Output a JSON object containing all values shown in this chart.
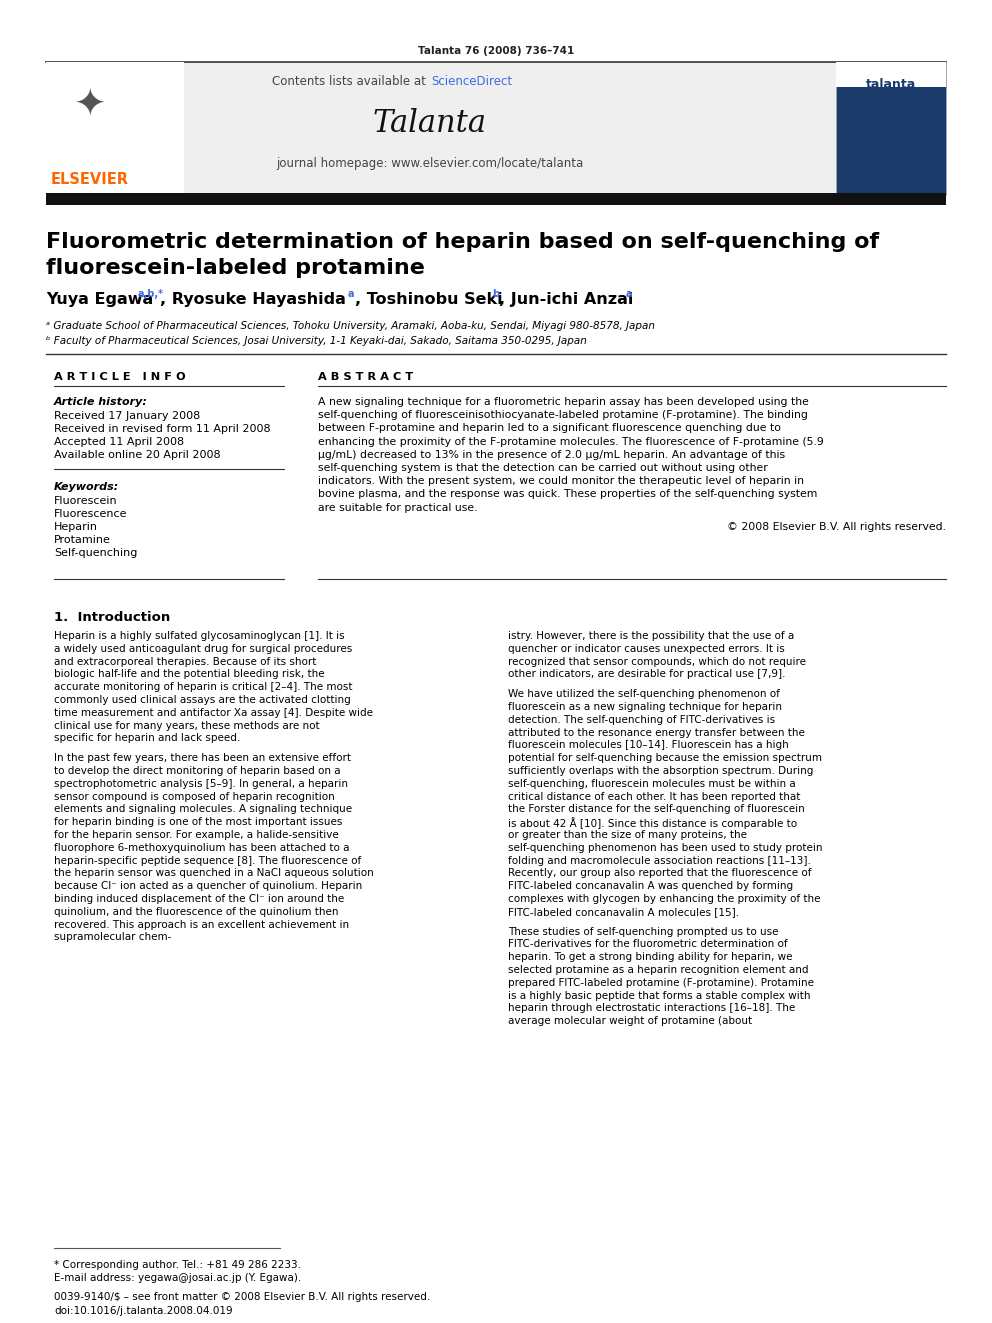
{
  "journal_ref": "Talanta 76 (2008) 736–741",
  "sciencedirect_color": "#4169e1",
  "journal_name": "Talanta",
  "journal_homepage": "journal homepage: www.elsevier.com/locate/talanta",
  "affil_a": "ᵃ Graduate School of Pharmaceutical Sciences, Tohoku University, Aramaki, Aoba-ku, Sendai, Miyagi 980-8578, Japan",
  "affil_b": "ᵇ Faculty of Pharmaceutical Sciences, Josai University, 1-1 Keyaki-dai, Sakado, Saitama 350-0295, Japan",
  "article_info_header": "A R T I C L E   I N F O",
  "abstract_header": "A B S T R A C T",
  "keywords": [
    "Fluorescein",
    "Fluorescence",
    "Heparin",
    "Protamine",
    "Self-quenching"
  ],
  "abstract_text": "A new signaling technique for a fluorometric heparin assay has been developed using the self-quenching of fluoresceinisothiocyanate-labeled protamine (F-protamine). The binding between F-protamine and heparin led to a significant fluorescence quenching due to enhancing the proximity of the F-protamine molecules. The fluorescence of F-protamine (5.9 μg/mL) decreased to 13% in the presence of 2.0 μg/mL heparin. An advantage of this self-quenching system is that the detection can be carried out without using other indicators. With the present system, we could monitor the therapeutic level of heparin in bovine plasma, and the response was quick. These properties of the self-quenching system are suitable for practical use.",
  "copyright": "© 2008 Elsevier B.V. All rights reserved.",
  "intro_col1_para1": "Heparin is a highly sulfated glycosaminoglycan [1]. It is a widely used anticoagulant drug for surgical procedures and extracorporeal therapies. Because of its short biologic half-life and the potential bleeding risk, the accurate monitoring of heparin is critical [2–4]. The most commonly used clinical assays are the activated clotting time measurement and antifactor Xa assay [4]. Despite wide clinical use for many years, these methods are not specific for heparin and lack speed.",
  "intro_col1_para2": "In the past few years, there has been an extensive effort to develop the direct monitoring of heparin based on a spectrophotometric analysis [5–9]. In general, a heparin sensor compound is composed of heparin recognition elements and signaling molecules. A signaling technique for heparin binding is one of the most important issues for the heparin sensor. For example, a halide-sensitive fluorophore 6-methoxyquinolium has been attached to a heparin-specific peptide sequence [8]. The fluorescence of the heparin sensor was quenched in a NaCl aqueous solution because Cl⁻ ion acted as a quencher of quinolium. Heparin binding induced displacement of the Cl⁻ ion around the quinolium, and the fluorescence of the quinolium then recovered. This approach is an excellent achievement in supramolecular chem-",
  "intro_col2_para1": "istry. However, there is the possibility that the use of a quencher or indicator causes unexpected errors. It is recognized that sensor compounds, which do not require other indicators, are desirable for practical use [7,9].",
  "intro_col2_para2": "We have utilized the self-quenching phenomenon of fluorescein as a new signaling technique for heparin detection. The self-quenching of FITC-derivatives is attributed to the resonance energy transfer between the fluorescein molecules [10–14]. Fluorescein has a high potential for self-quenching because the emission spectrum sufficiently overlaps with the absorption spectrum. During self-quenching, fluorescein molecules must be within a critical distance of each other. It has been reported that the Forster distance for the self-quenching of fluorescein is about 42 Å [10]. Since this distance is comparable to or greater than the size of many proteins, the self-quenching phenomenon has been used to study protein folding and macromolecule association reactions [11–13]. Recently, our group also reported that the fluorescence of FITC-labeled concanavalin A was quenched by forming complexes with glycogen by enhancing the proximity of the FITC-labeled concanavalin A molecules [15].",
  "intro_col2_para3": "These studies of self-quenching prompted us to use FITC-derivatives for the fluorometric determination of heparin. To get a strong binding ability for heparin, we selected protamine as a heparin recognition element and prepared FITC-labeled protamine (F-protamine). Protamine is a highly basic peptide that forms a stable complex with heparin through electrostatic interactions [16–18]. The average molecular weight of protamine (about",
  "footnote_star": "* Corresponding author. Tel.: +81 49 286 2233.",
  "footnote_email": "E-mail address: yegawa@josai.ac.jp (Y. Egawa).",
  "footer_issn": "0039-9140/$ – see front matter © 2008 Elsevier B.V. All rights reserved.",
  "footer_doi": "doi:10.1016/j.talanta.2008.04.019",
  "bg_color": "#ffffff",
  "elsevier_color": "#FF6600",
  "dark_bar_color": "#111111",
  "link_color": "#4169e1"
}
